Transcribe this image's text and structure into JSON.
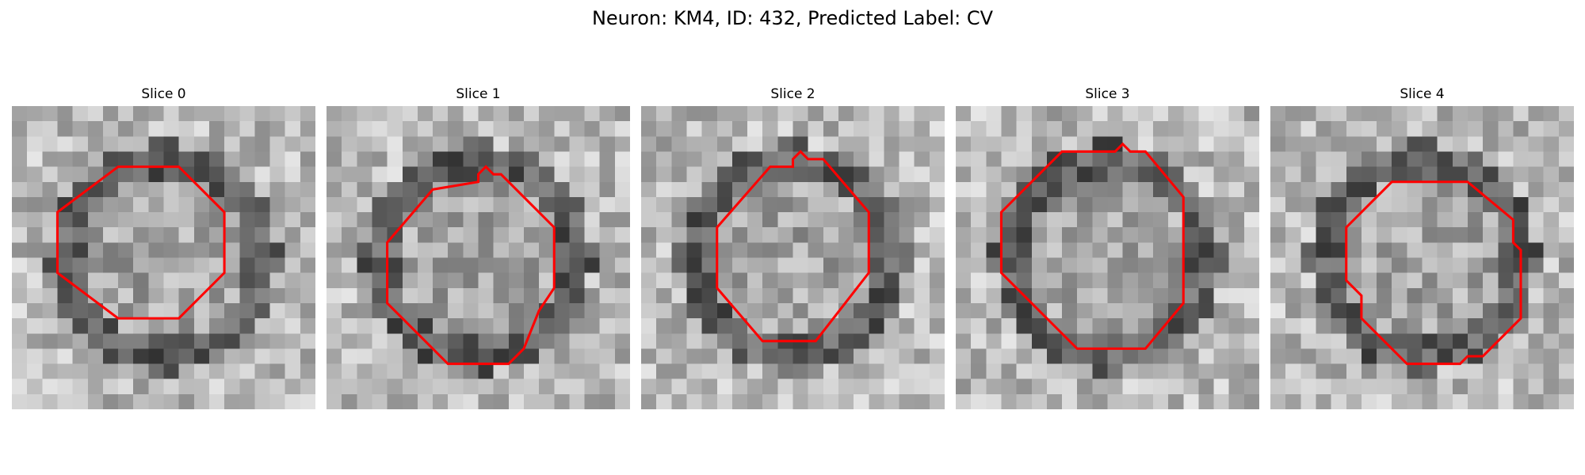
{
  "figure": {
    "title": "Neuron: KM4, ID: 432, Predicted Label: CV"
  },
  "contour_color": "#ff0000",
  "panels": [
    {
      "title": "Slice 0",
      "seed": 11,
      "contour": [
        [
          7,
          4
        ],
        [
          11,
          4
        ],
        [
          14,
          7
        ],
        [
          14,
          11
        ],
        [
          11,
          14
        ],
        [
          7,
          14
        ],
        [
          3,
          11
        ],
        [
          3,
          7
        ]
      ]
    },
    {
      "title": "Slice 1",
      "seed": 23,
      "contour": [
        [
          10,
          5
        ],
        [
          10,
          4.5
        ],
        [
          10.5,
          4
        ],
        [
          11,
          4.5
        ],
        [
          11.5,
          4.5
        ],
        [
          15,
          8
        ],
        [
          15,
          12
        ],
        [
          14,
          13.5
        ],
        [
          13,
          16
        ],
        [
          12,
          17
        ],
        [
          8,
          17
        ],
        [
          4,
          13
        ],
        [
          4,
          9
        ],
        [
          7,
          5.5
        ]
      ]
    },
    {
      "title": "Slice 2",
      "seed": 37,
      "contour": [
        [
          10,
          4
        ],
        [
          10,
          3.5
        ],
        [
          10.5,
          3
        ],
        [
          11,
          3.5
        ],
        [
          12,
          3.5
        ],
        [
          15,
          7
        ],
        [
          15,
          11
        ],
        [
          11.5,
          15.5
        ],
        [
          8,
          15.5
        ],
        [
          5,
          12
        ],
        [
          5,
          8
        ],
        [
          8.5,
          4
        ]
      ]
    },
    {
      "title": "Slice 3",
      "seed": 41,
      "contour": [
        [
          10.5,
          3
        ],
        [
          11,
          2.5
        ],
        [
          11.5,
          3
        ],
        [
          12.5,
          3
        ],
        [
          15,
          6
        ],
        [
          15,
          13
        ],
        [
          12.5,
          16
        ],
        [
          8,
          16
        ],
        [
          3,
          11
        ],
        [
          3,
          7
        ],
        [
          7,
          3
        ]
      ]
    },
    {
      "title": "Slice 4",
      "seed": 53,
      "contour": [
        [
          13,
          5
        ],
        [
          16,
          7.5
        ],
        [
          16,
          9
        ],
        [
          16.5,
          9.5
        ],
        [
          16.5,
          14
        ],
        [
          14,
          16.5
        ],
        [
          13,
          16.5
        ],
        [
          12.5,
          17
        ],
        [
          9,
          17
        ],
        [
          6,
          14
        ],
        [
          6,
          12.5
        ],
        [
          5.5,
          12
        ],
        [
          5,
          11.5
        ],
        [
          5,
          8
        ],
        [
          8,
          5
        ]
      ]
    }
  ]
}
